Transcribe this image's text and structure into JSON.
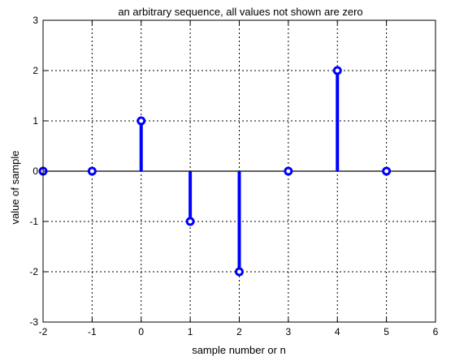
{
  "chart_data": {
    "type": "stem",
    "title": "an arbitrary sequence, all values not shown are zero",
    "xlabel": "sample number or n",
    "ylabel": "value of sample",
    "xlim": [
      -2,
      6
    ],
    "ylim": [
      -3,
      3
    ],
    "xticks": [
      -2,
      -1,
      0,
      1,
      2,
      3,
      4,
      5,
      6
    ],
    "yticks": [
      -3,
      -2,
      -1,
      0,
      1,
      2,
      3
    ],
    "grid": true,
    "grid_style": "dashed",
    "series": [
      {
        "x": [
          -2,
          -1,
          0,
          1,
          2,
          3,
          4,
          5
        ],
        "y": [
          0,
          0,
          1,
          -1,
          -2,
          0,
          2,
          0
        ],
        "color": "#0000ff"
      }
    ],
    "baseline_color": "#000000"
  }
}
